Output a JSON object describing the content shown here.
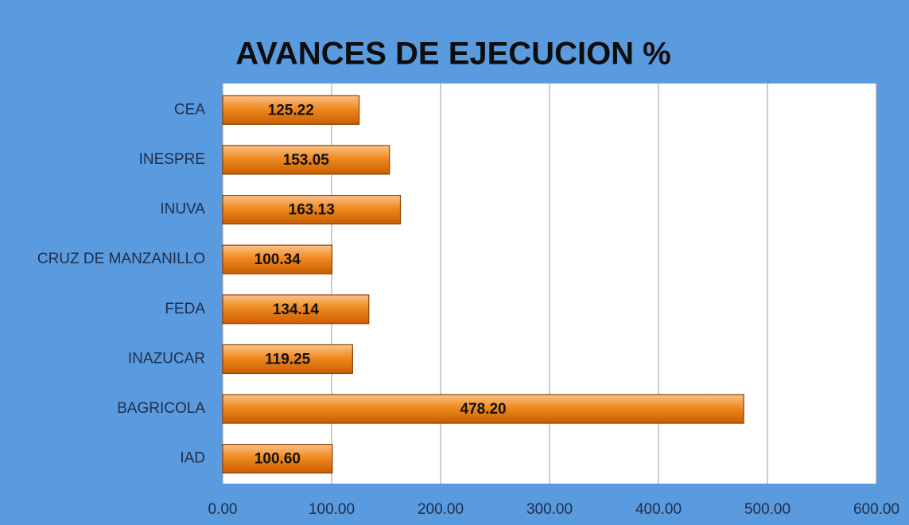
{
  "chart_data": {
    "type": "hbar",
    "title": "AVANCES DE EJECUCION %",
    "categories": [
      "CEA",
      "INESPRE",
      "INUVA",
      "CRUZ DE MANZANILLO",
      "FEDA",
      "INAZUCAR",
      "BAGRICOLA",
      "IAD"
    ],
    "values": [
      125.22,
      153.05,
      163.13,
      100.34,
      134.14,
      119.25,
      478.2,
      100.6
    ],
    "value_labels": [
      "125.22",
      "153.05",
      "163.13",
      "100.34",
      "134.14",
      "119.25",
      "478.20",
      "100.60"
    ],
    "color": "#f07d10",
    "xlim": [
      0,
      600
    ],
    "xticks": [
      {
        "value": 0,
        "label": "0.00"
      },
      {
        "value": 100,
        "label": "100.00"
      },
      {
        "value": 200,
        "label": "200.00"
      },
      {
        "value": 300,
        "label": "300.00"
      },
      {
        "value": 400,
        "label": "400.00"
      },
      {
        "value": 500,
        "label": "500.00"
      },
      {
        "value": 600,
        "label": "600.00"
      }
    ],
    "grid": true
  }
}
